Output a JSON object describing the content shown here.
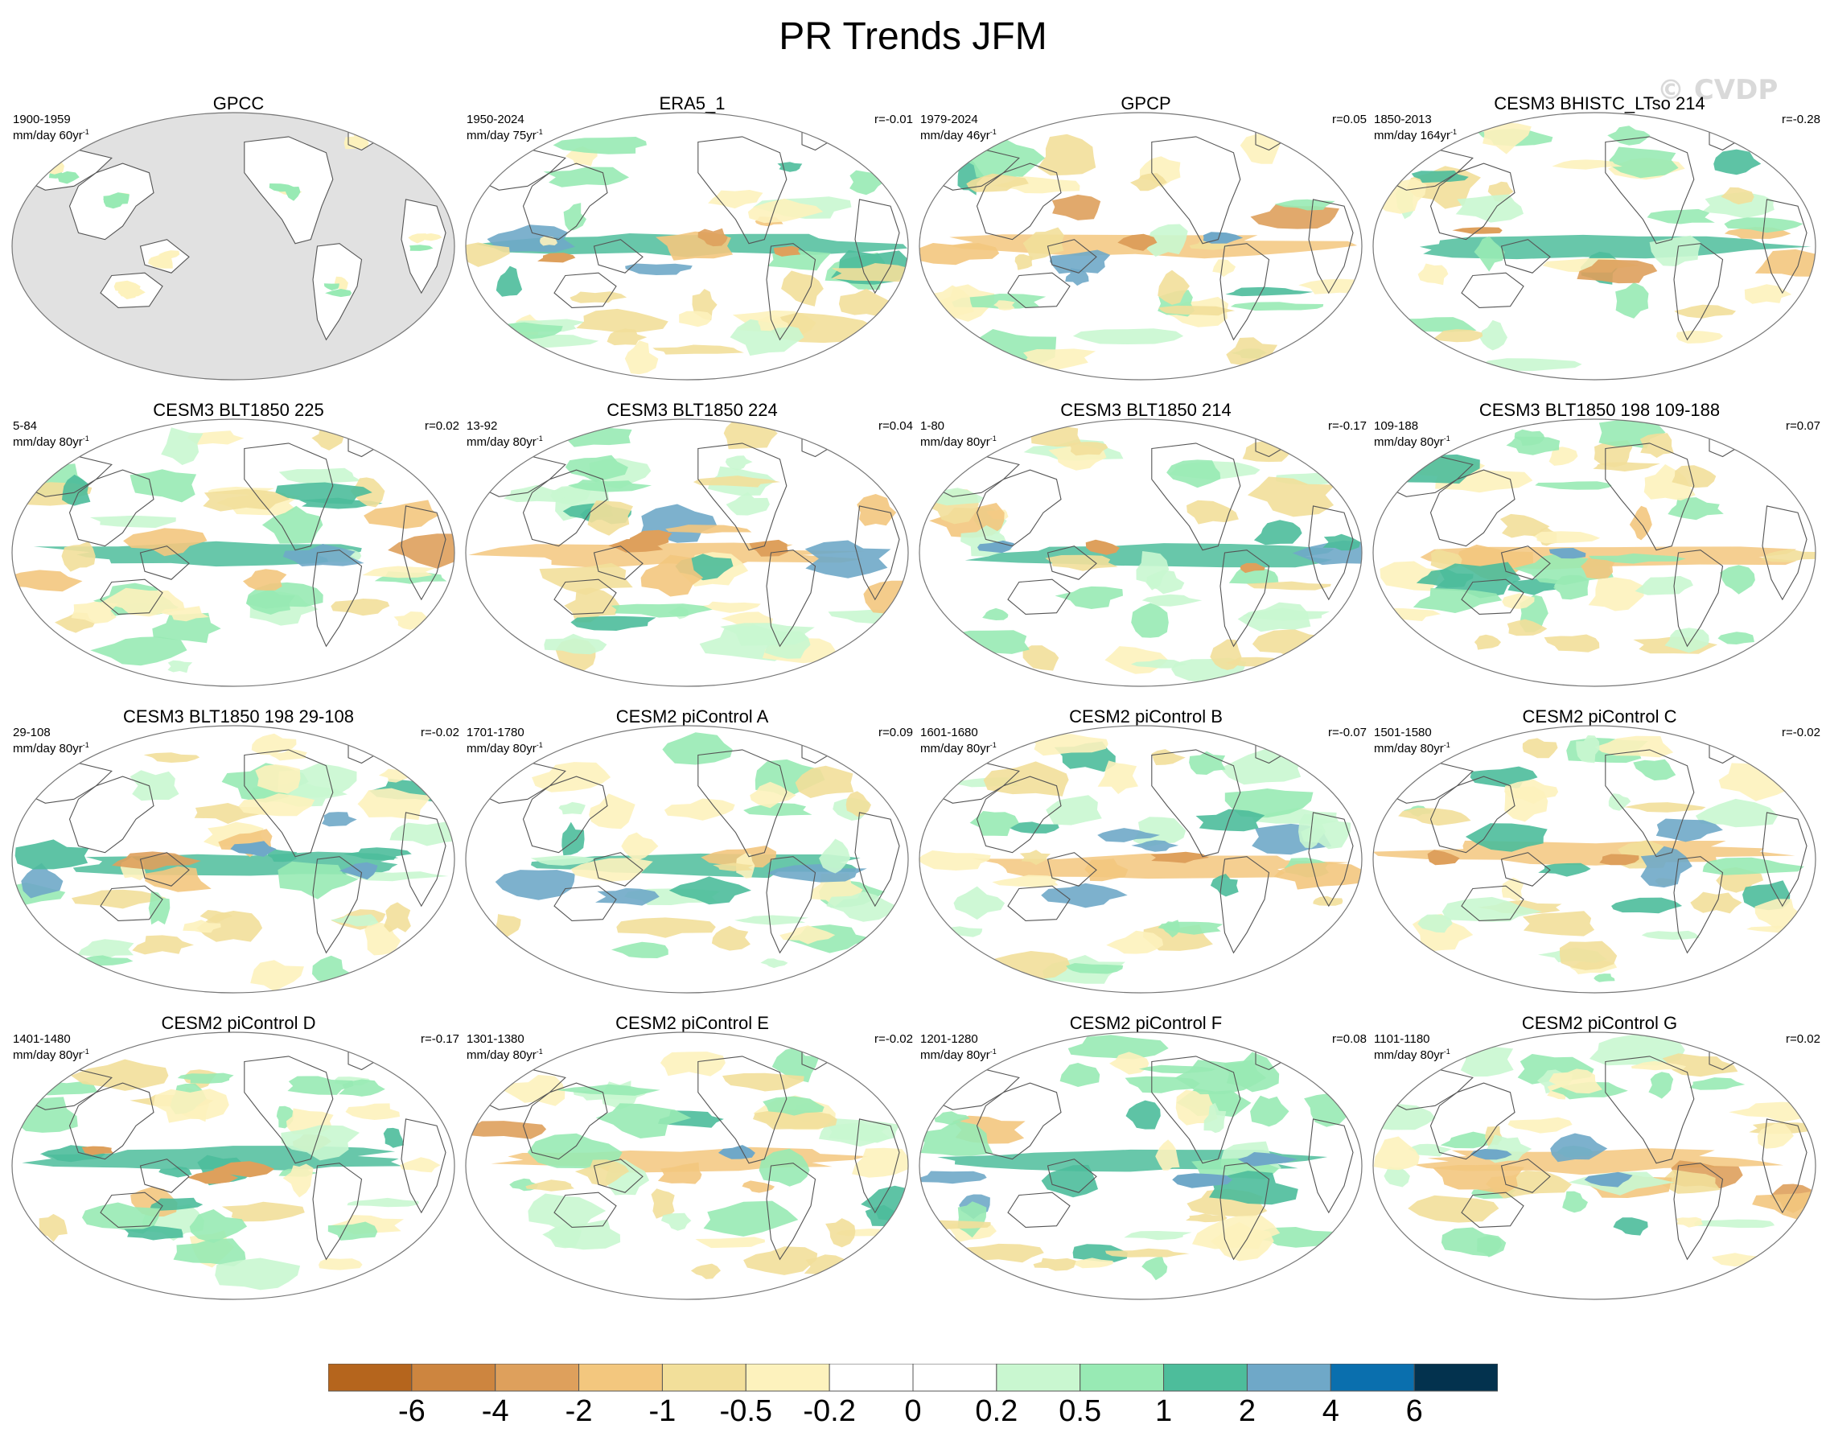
{
  "title": "PR Trends JFM",
  "watermark": "© CVDP",
  "units_text": "mm/day ",
  "colors": {
    "neg6": "#b5651d",
    "neg4": "#cd853f",
    "neg2": "#dea05c",
    "neg1": "#f3c77e",
    "neg05": "#f2df9a",
    "neg02": "#fdf2bd",
    "zero": "#ffffff",
    "pos02": "#c9f7d0",
    "pos05": "#98eab4",
    "pos1": "#4dbd9b",
    "pos2": "#6fa8c8",
    "pos4": "#0a6fae",
    "pos6": "#03324e",
    "land_mask": "#e1e1e1",
    "coast": "#555555"
  },
  "colorbar": {
    "labels": [
      "-6",
      "-4",
      "-2",
      "-1",
      "-0.5",
      "-0.2",
      "0",
      "0.2",
      "0.5",
      "1",
      "2",
      "4",
      "6"
    ],
    "bins": 14
  },
  "panels": [
    {
      "title": "GPCC",
      "years": "1900-1959",
      "span": "60yr",
      "r": "",
      "masked": true,
      "seed": 3
    },
    {
      "title": "ERA5_1",
      "years": "1950-2024",
      "span": "75yr",
      "r": "r=-0.01",
      "masked": false,
      "seed": 11
    },
    {
      "title": "GPCP",
      "years": "1979-2024",
      "span": "46yr",
      "r": "r=0.05",
      "masked": false,
      "seed": 17
    },
    {
      "title": "CESM3 BHISTC_LTso 214",
      "years": "1850-2013",
      "span": "164yr",
      "r": "r=-0.28",
      "masked": false,
      "seed": 23
    },
    {
      "title": "CESM3 BLT1850 225",
      "years": "5-84",
      "span": "80yr",
      "r": "r=0.02",
      "masked": false,
      "seed": 29
    },
    {
      "title": "CESM3 BLT1850 224",
      "years": "13-92",
      "span": "80yr",
      "r": "r=0.04",
      "masked": false,
      "seed": 31
    },
    {
      "title": "CESM3 BLT1850 214",
      "years": "1-80",
      "span": "80yr",
      "r": "r=-0.17",
      "masked": false,
      "seed": 37
    },
    {
      "title": "CESM3 BLT1850 198 109-188",
      "years": "109-188",
      "span": "80yr",
      "r": "r=0.07",
      "masked": false,
      "seed": 41
    },
    {
      "title": "CESM3 BLT1850 198 29-108",
      "years": "29-108",
      "span": "80yr",
      "r": "r=-0.02",
      "masked": false,
      "seed": 43
    },
    {
      "title": "CESM2 piControl A",
      "years": "1701-1780",
      "span": "80yr",
      "r": "r=0.09",
      "masked": false,
      "seed": 47
    },
    {
      "title": "CESM2 piControl B",
      "years": "1601-1680",
      "span": "80yr",
      "r": "r=-0.07",
      "masked": false,
      "seed": 53
    },
    {
      "title": "CESM2 piControl C",
      "years": "1501-1580",
      "span": "80yr",
      "r": "r=-0.02",
      "masked": false,
      "seed": 59
    },
    {
      "title": "CESM2 piControl D",
      "years": "1401-1480",
      "span": "80yr",
      "r": "r=-0.17",
      "masked": false,
      "seed": 61
    },
    {
      "title": "CESM2 piControl E",
      "years": "1301-1380",
      "span": "80yr",
      "r": "r=-0.02",
      "masked": false,
      "seed": 67
    },
    {
      "title": "CESM2 piControl F",
      "years": "1201-1280",
      "span": "80yr",
      "r": "r=0.08",
      "masked": false,
      "seed": 71
    },
    {
      "title": "CESM2 piControl G",
      "years": "1101-1180",
      "span": "80yr",
      "r": "r=0.02",
      "masked": false,
      "seed": 73
    }
  ]
}
